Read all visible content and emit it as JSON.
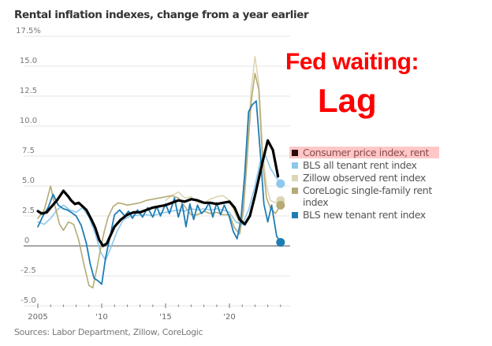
{
  "annotation": {
    "line1": "Fed waiting:",
    "line2": "Lag"
  },
  "chart_data": {
    "type": "line",
    "title": "Rental inflation indexes, change from a year earlier",
    "xlabel": "",
    "ylabel": "",
    "ylim": [
      -5.0,
      17.5
    ],
    "xlim": [
      2004.7,
      2024.2
    ],
    "y_ticks": [
      {
        "value": 17.5,
        "label": "17.5%"
      },
      {
        "value": 15.0,
        "label": "15.0"
      },
      {
        "value": 12.5,
        "label": "12.5"
      },
      {
        "value": 10.0,
        "label": "10.0"
      },
      {
        "value": 7.5,
        "label": "7.5"
      },
      {
        "value": 5.0,
        "label": "5.0"
      },
      {
        "value": 2.5,
        "label": "2.5"
      },
      {
        "value": 0,
        "label": "0"
      },
      {
        "value": -2.5,
        "label": "-2.5"
      },
      {
        "value": -5.0,
        "label": "-5.0"
      }
    ],
    "x_ticks": [
      {
        "value": 2005,
        "label": "2005"
      },
      {
        "value": 2010,
        "label": "'10"
      },
      {
        "value": 2015,
        "label": "'15"
      },
      {
        "value": 2020,
        "label": "'20"
      }
    ],
    "grid": true,
    "legend_position": "right",
    "source": "Sources: Labor Department, Zillow, CoreLogic",
    "series": [
      {
        "name": "Consumer price index, rent",
        "color": "#000000",
        "highlight": true,
        "x": [
          2005,
          2005.3,
          2005.7,
          2006,
          2006.5,
          2007,
          2007.4,
          2007.6,
          2007.9,
          2008.2,
          2008.5,
          2008.8,
          2009.2,
          2009.5,
          2009.8,
          2010.1,
          2010.4,
          2010.7,
          2011,
          2011.5,
          2012,
          2012.5,
          2013,
          2013.5,
          2014,
          2014.5,
          2015,
          2015.5,
          2016,
          2016.5,
          2017,
          2017.5,
          2018,
          2018.5,
          2019,
          2019.5,
          2020,
          2020.4,
          2020.8,
          2021.2,
          2021.6,
          2022,
          2022.5,
          2023,
          2023.4,
          2023.8
        ],
        "values": [
          2.9,
          2.7,
          2.8,
          3.2,
          3.8,
          4.6,
          4.1,
          3.8,
          3.5,
          3.6,
          3.3,
          3.0,
          2.2,
          1.5,
          0.5,
          0.0,
          0.2,
          0.9,
          1.6,
          2.2,
          2.6,
          2.8,
          2.8,
          3.0,
          3.2,
          3.3,
          3.4,
          3.6,
          3.8,
          3.7,
          3.9,
          3.8,
          3.6,
          3.6,
          3.5,
          3.6,
          3.7,
          3.2,
          2.2,
          1.8,
          2.5,
          4.2,
          6.6,
          8.8,
          8.0,
          5.8
        ]
      },
      {
        "name": "BLS all tenant rent index",
        "color": "#8cc8ec",
        "x": [
          2005,
          2005.5,
          2006,
          2006.5,
          2007,
          2007.5,
          2008,
          2008.5,
          2009,
          2009.5,
          2009.9,
          2010.3,
          2010.7,
          2011.2,
          2011.7,
          2012.3,
          2013,
          2013.5,
          2014,
          2014.5,
          2015,
          2015.5,
          2016,
          2016.5,
          2017,
          2017.5,
          2018,
          2018.5,
          2019,
          2019.5,
          2020,
          2020.5,
          2021,
          2021.5,
          2022,
          2022.4,
          2022.8,
          2023.2,
          2023.6,
          2024
        ],
        "values": [
          2.0,
          1.8,
          2.3,
          3.0,
          3.4,
          3.0,
          2.8,
          3.2,
          2.4,
          1.0,
          -0.5,
          -1.2,
          -0.2,
          1.2,
          2.2,
          2.5,
          2.6,
          2.6,
          2.5,
          2.7,
          2.8,
          2.9,
          3.0,
          2.9,
          3.1,
          3.0,
          3.1,
          3.0,
          3.1,
          3.0,
          2.8,
          2.0,
          1.8,
          3.0,
          5.0,
          7.0,
          7.6,
          6.5,
          5.8,
          5.2
        ]
      },
      {
        "name": "Zillow observed rent index",
        "color": "#dcd6b4",
        "x": [
          2015,
          2015.5,
          2016,
          2016.5,
          2017,
          2017.5,
          2018,
          2018.5,
          2019,
          2019.5,
          2020,
          2020.4,
          2020.8,
          2021.1,
          2021.4,
          2021.7,
          2022,
          2022.3,
          2022.6,
          2022.9,
          2023.2,
          2023.6,
          2024
        ],
        "values": [
          3.8,
          4.2,
          4.5,
          4.0,
          4.1,
          3.6,
          3.6,
          3.9,
          4.1,
          4.2,
          3.8,
          2.8,
          1.8,
          3.5,
          8.0,
          13.0,
          15.8,
          13.5,
          8.0,
          5.0,
          3.8,
          3.6,
          3.8
        ]
      },
      {
        "name": "CoreLogic single-family rent index",
        "color": "#b5ab76",
        "x": [
          2005,
          2005.5,
          2006,
          2006.3,
          2006.7,
          2007,
          2007.4,
          2007.8,
          2008.2,
          2008.6,
          2009,
          2009.3,
          2009.6,
          2009.9,
          2010.2,
          2010.5,
          2010.9,
          2011.3,
          2011.7,
          2012,
          2012.5,
          2013,
          2013.5,
          2014,
          2014.5,
          2015,
          2015.5,
          2016,
          2016.5,
          2017,
          2017.5,
          2018,
          2018.5,
          2019,
          2019.5,
          2020,
          2020.4,
          2020.8,
          2021.1,
          2021.4,
          2021.7,
          2022,
          2022.3,
          2022.6,
          2022.9,
          2023.2,
          2023.6,
          2024
        ],
        "values": [
          2.3,
          3.0,
          5.0,
          3.5,
          1.8,
          1.3,
          2.0,
          1.8,
          0.5,
          -1.5,
          -3.3,
          -3.5,
          -2.0,
          -0.3,
          1.2,
          2.4,
          3.3,
          3.6,
          3.5,
          3.4,
          3.5,
          3.6,
          3.8,
          3.9,
          4.0,
          4.1,
          4.2,
          4.0,
          3.3,
          2.6,
          2.6,
          2.9,
          2.7,
          2.8,
          2.6,
          2.6,
          1.5,
          1.0,
          3.0,
          7.5,
          12.0,
          14.4,
          13.0,
          7.0,
          4.0,
          3.2,
          2.7,
          3.4
        ]
      },
      {
        "name": "BLS new tenant rent index",
        "color": "#1f7db3",
        "x": [
          2005,
          2005.4,
          2005.8,
          2006.2,
          2006.6,
          2007,
          2007.3,
          2007.6,
          2008,
          2008.4,
          2008.8,
          2009.1,
          2009.4,
          2009.7,
          2010,
          2010.3,
          2010.7,
          2011,
          2011.4,
          2011.8,
          2012.1,
          2012.4,
          2012.8,
          2013.2,
          2013.6,
          2014,
          2014.3,
          2014.6,
          2015,
          2015.3,
          2015.7,
          2016,
          2016.3,
          2016.6,
          2016.9,
          2017.2,
          2017.5,
          2017.8,
          2018.1,
          2018.4,
          2018.7,
          2019,
          2019.3,
          2019.6,
          2020,
          2020.3,
          2020.6,
          2020.9,
          2021.2,
          2021.5,
          2021.8,
          2022.1,
          2022.4,
          2022.7,
          2023,
          2023.3,
          2023.7,
          2024
        ],
        "values": [
          1.6,
          2.5,
          3.2,
          4.3,
          3.4,
          3.1,
          3.0,
          2.8,
          2.5,
          1.7,
          0.2,
          -1.5,
          -2.7,
          -2.9,
          -3.2,
          -1.0,
          1.0,
          2.6,
          3.0,
          2.5,
          2.9,
          2.3,
          3.0,
          2.4,
          3.2,
          2.4,
          3.3,
          2.5,
          3.5,
          2.7,
          4.0,
          2.4,
          3.5,
          1.6,
          3.5,
          2.2,
          3.4,
          2.7,
          3.0,
          3.6,
          2.4,
          3.6,
          2.6,
          3.4,
          2.4,
          1.2,
          0.6,
          2.2,
          6.0,
          11.2,
          11.8,
          12.1,
          8.0,
          3.5,
          2.0,
          3.4,
          0.8,
          0.3
        ]
      }
    ]
  }
}
